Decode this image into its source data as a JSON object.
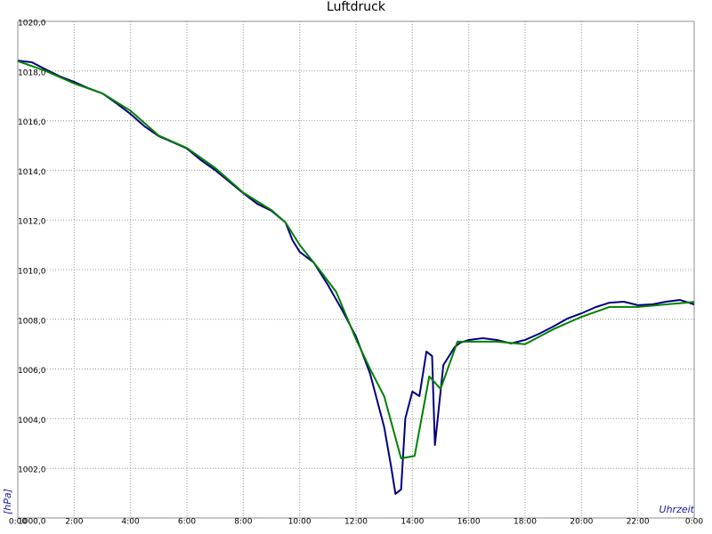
{
  "chart_data": {
    "type": "line",
    "title": "Luftdruck",
    "y_label": "[hPa]",
    "x_label": "Uhrzeit",
    "xlim": [
      0,
      24
    ],
    "xticks": [
      {
        "value": 0,
        "label": "0:00"
      },
      {
        "value": 2,
        "label": "2:00"
      },
      {
        "value": 4,
        "label": "4:00"
      },
      {
        "value": 6,
        "label": "6:00"
      },
      {
        "value": 8,
        "label": "8:00"
      },
      {
        "value": 10,
        "label": "10:00"
      },
      {
        "value": 12,
        "label": "12:00"
      },
      {
        "value": 14,
        "label": "14:00"
      },
      {
        "value": 16,
        "label": "16:00"
      },
      {
        "value": 18,
        "label": "18:00"
      },
      {
        "value": 20,
        "label": "20:00"
      },
      {
        "value": 22,
        "label": "22:00"
      },
      {
        "value": 24,
        "label": "0:00"
      }
    ],
    "ylim": [
      1000,
      1020
    ],
    "yticks": [
      {
        "value": 1000,
        "label": "1000,0"
      },
      {
        "value": 1002,
        "label": "1002,0"
      },
      {
        "value": 1004,
        "label": "1004,0"
      },
      {
        "value": 1006,
        "label": "1006,0"
      },
      {
        "value": 1008,
        "label": "1008,0"
      },
      {
        "value": 1010,
        "label": "1010,0"
      },
      {
        "value": 1012,
        "label": "1012,0"
      },
      {
        "value": 1014,
        "label": "1014,0"
      },
      {
        "value": 1016,
        "label": "1016,0"
      },
      {
        "value": 1018,
        "label": "1018,0"
      },
      {
        "value": 1020,
        "label": "1020,0"
      }
    ],
    "grid": true,
    "series": [
      {
        "color": "#000080",
        "x": [
          0,
          0.5,
          1,
          1.5,
          2,
          2.5,
          3,
          3.5,
          4,
          4.5,
          5,
          5.5,
          6,
          6.5,
          7,
          7.5,
          8,
          8.5,
          9,
          9.5,
          9.75,
          10,
          10.5,
          11,
          11.5,
          12,
          12.5,
          13,
          13.25,
          13.4,
          13.6,
          13.75,
          14,
          14.25,
          14.5,
          14.7,
          14.8,
          15.1,
          15.5,
          15.7,
          16,
          16.5,
          17,
          17.5,
          18,
          18.5,
          19,
          19.5,
          20,
          20.5,
          21,
          21.5,
          22,
          22.5,
          23,
          23.5,
          24
        ],
        "values": [
          1018.42,
          1018.35,
          1018.06,
          1017.78,
          1017.56,
          1017.31,
          1017.1,
          1016.7,
          1016.27,
          1015.77,
          1015.38,
          1015.13,
          1014.88,
          1014.41,
          1014.01,
          1013.55,
          1013.08,
          1012.65,
          1012.37,
          1011.9,
          1011.18,
          1010.72,
          1010.29,
          1009.39,
          1008.39,
          1007.31,
          1005.81,
          1003.66,
          1002.04,
          1000.97,
          1001.15,
          1004.01,
          1005.09,
          1004.91,
          1006.7,
          1006.52,
          1002.94,
          1006.16,
          1006.88,
          1007.06,
          1007.17,
          1007.24,
          1007.17,
          1007.03,
          1007.17,
          1007.42,
          1007.71,
          1008.03,
          1008.24,
          1008.49,
          1008.67,
          1008.71,
          1008.57,
          1008.6,
          1008.71,
          1008.78,
          1008.6
        ]
      },
      {
        "color": "#008000",
        "x": [
          0,
          1,
          2,
          3,
          4,
          5,
          6,
          7,
          8,
          9,
          9.5,
          10,
          10.7,
          11.3,
          12,
          12.5,
          13,
          13.6,
          14.08,
          14.6,
          15,
          15.6,
          16,
          17,
          18,
          19,
          20,
          21,
          22,
          23,
          24
        ],
        "values": [
          1018.4,
          1018.0,
          1017.5,
          1017.1,
          1016.4,
          1015.4,
          1014.9,
          1014.1,
          1013.1,
          1012.4,
          1011.9,
          1011.0,
          1010.0,
          1009.1,
          1007.2,
          1006.0,
          1004.9,
          1002.4,
          1002.5,
          1005.7,
          1005.2,
          1007.1,
          1007.1,
          1007.1,
          1007.0,
          1007.6,
          1008.1,
          1008.5,
          1008.5,
          1008.6,
          1008.7
        ]
      }
    ]
  }
}
